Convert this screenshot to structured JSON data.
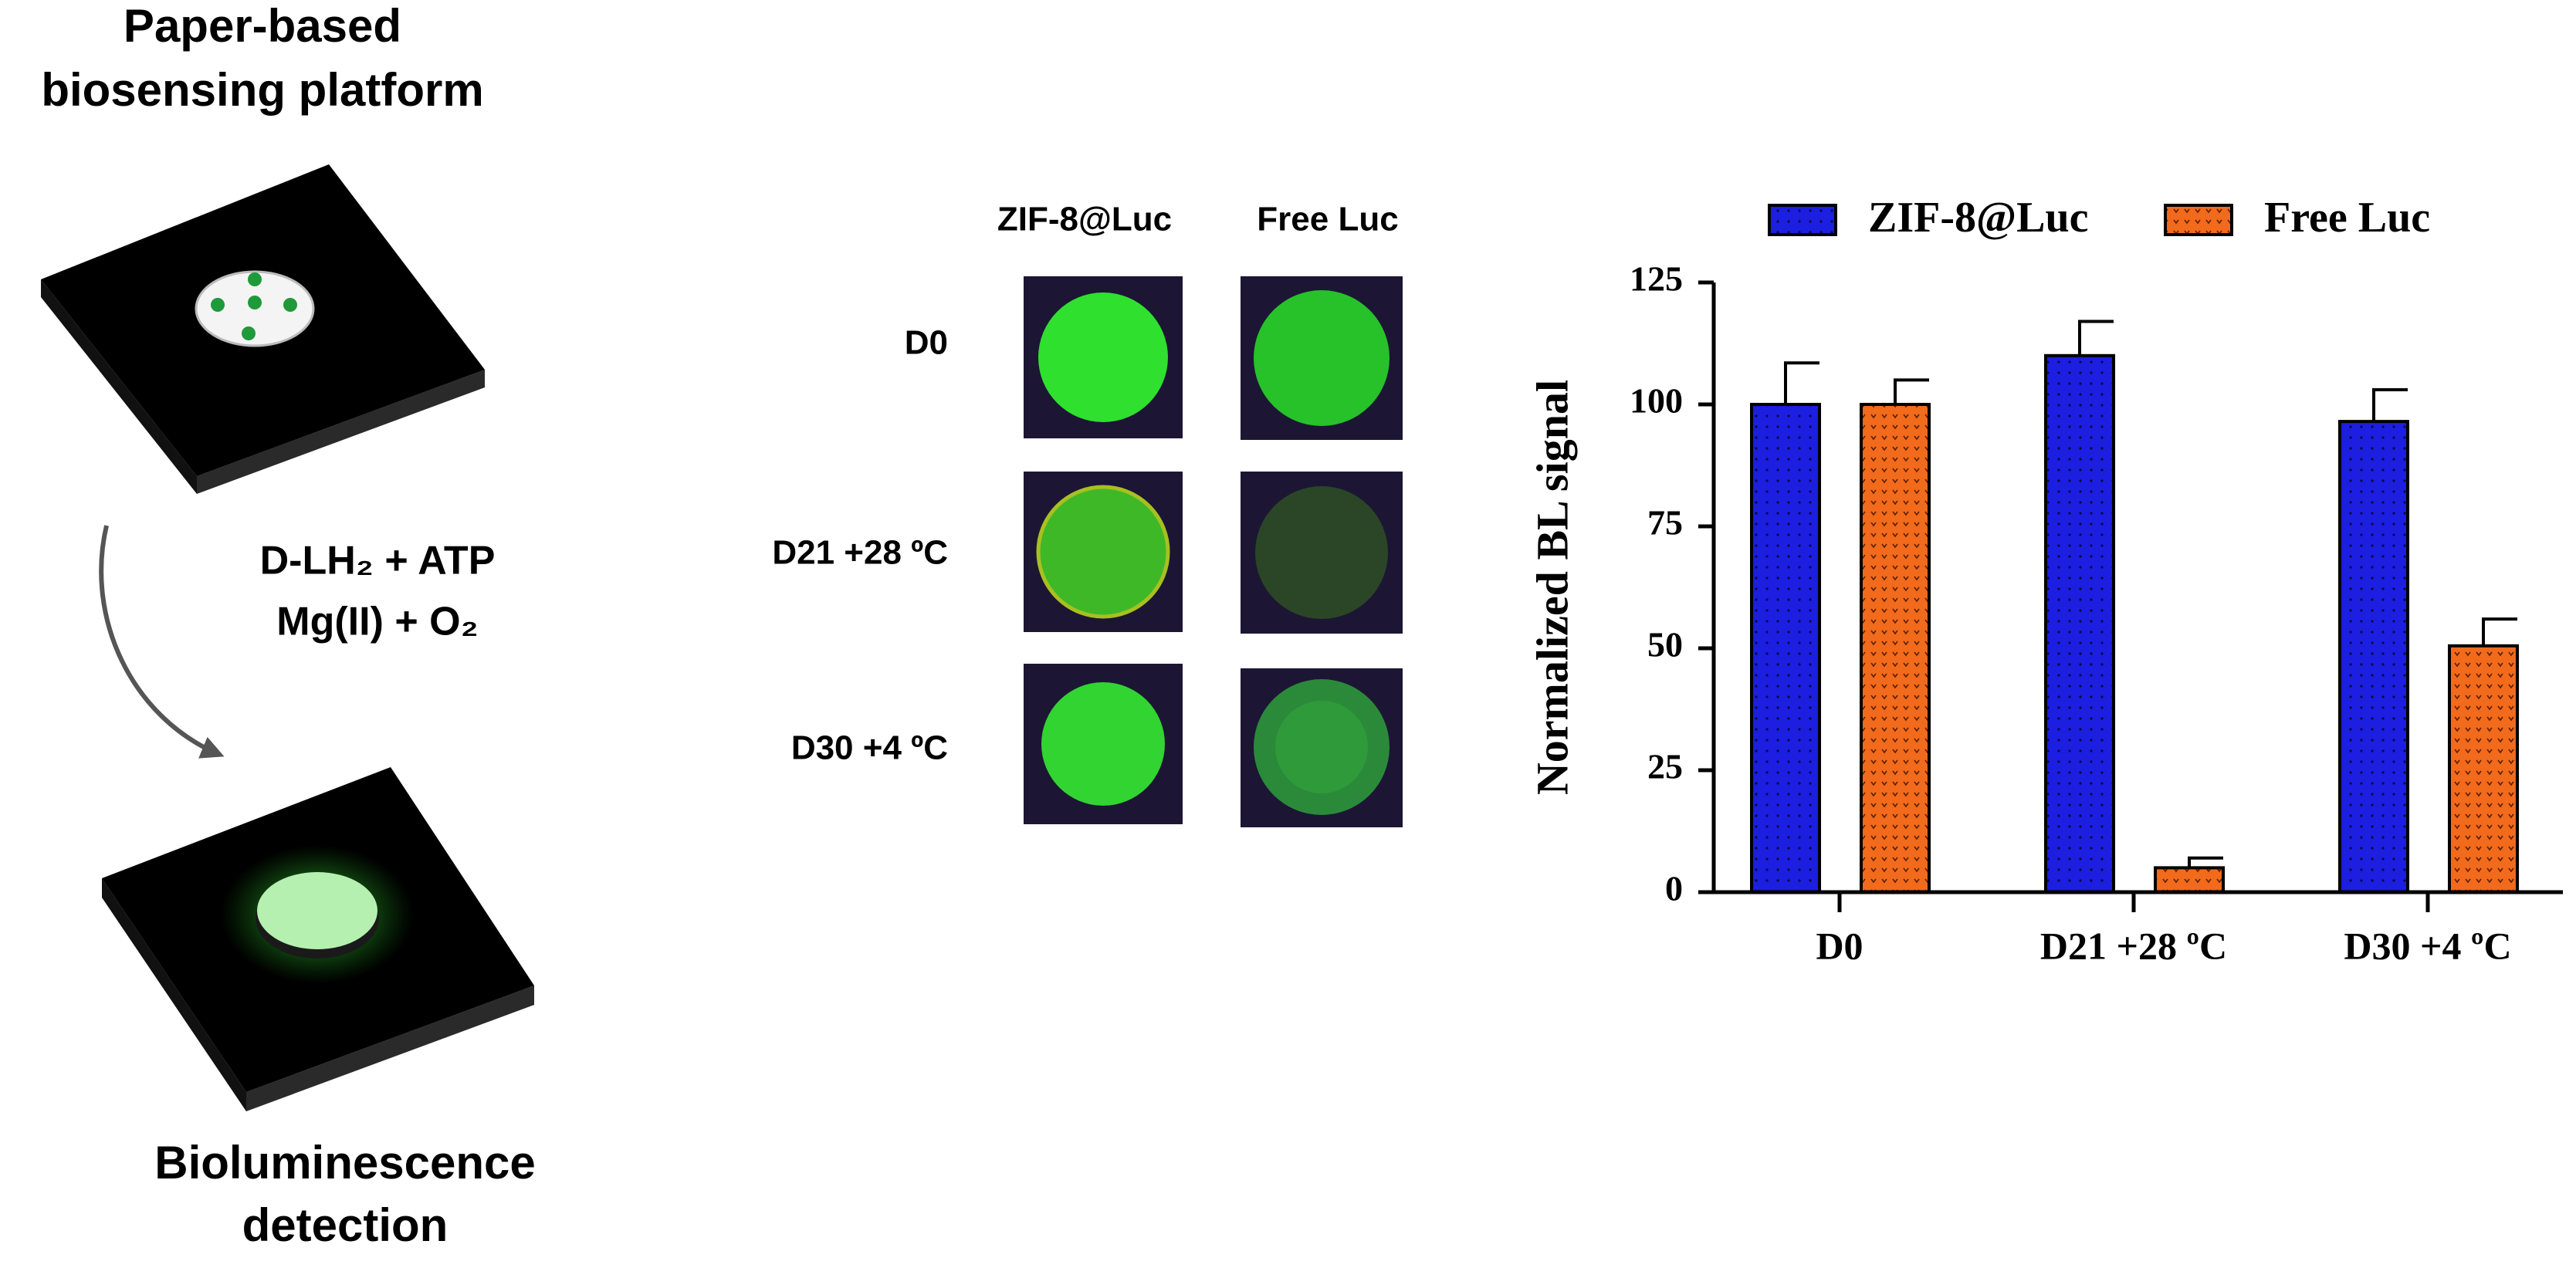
{
  "diagram": {
    "title": [
      "Paper-based",
      "biosensing platform"
    ],
    "reagents": [
      "D-LH₂ + ATP",
      "Mg(II) + O₂"
    ],
    "output": [
      "Bioluminescence",
      "detection"
    ]
  },
  "image_panel": {
    "columns": [
      "ZIF-8@Luc",
      "Free Luc"
    ],
    "rows": [
      "D0",
      "D21 +28 ºC",
      "D30 +4 ºC"
    ]
  },
  "chart_data": {
    "type": "bar",
    "y_label": "Normalized BL signal",
    "categories": [
      "D0",
      "D21 +28 ºC",
      "D30 +4 ºC"
    ],
    "series": [
      {
        "name": "ZIF-8@Luc",
        "color": "#1c1ee0",
        "values": [
          100,
          110,
          96.5
        ],
        "errors": [
          8.5,
          7,
          6.5
        ]
      },
      {
        "name": "Free Luc",
        "color": "#f26a1b",
        "values": [
          100,
          5,
          50.5
        ],
        "errors": [
          5,
          2,
          5.5
        ]
      }
    ],
    "ylim": [
      0,
      125
    ],
    "yticks": [
      0,
      25,
      50,
      75,
      100,
      125
    ],
    "legend": "top",
    "grid": false
  }
}
